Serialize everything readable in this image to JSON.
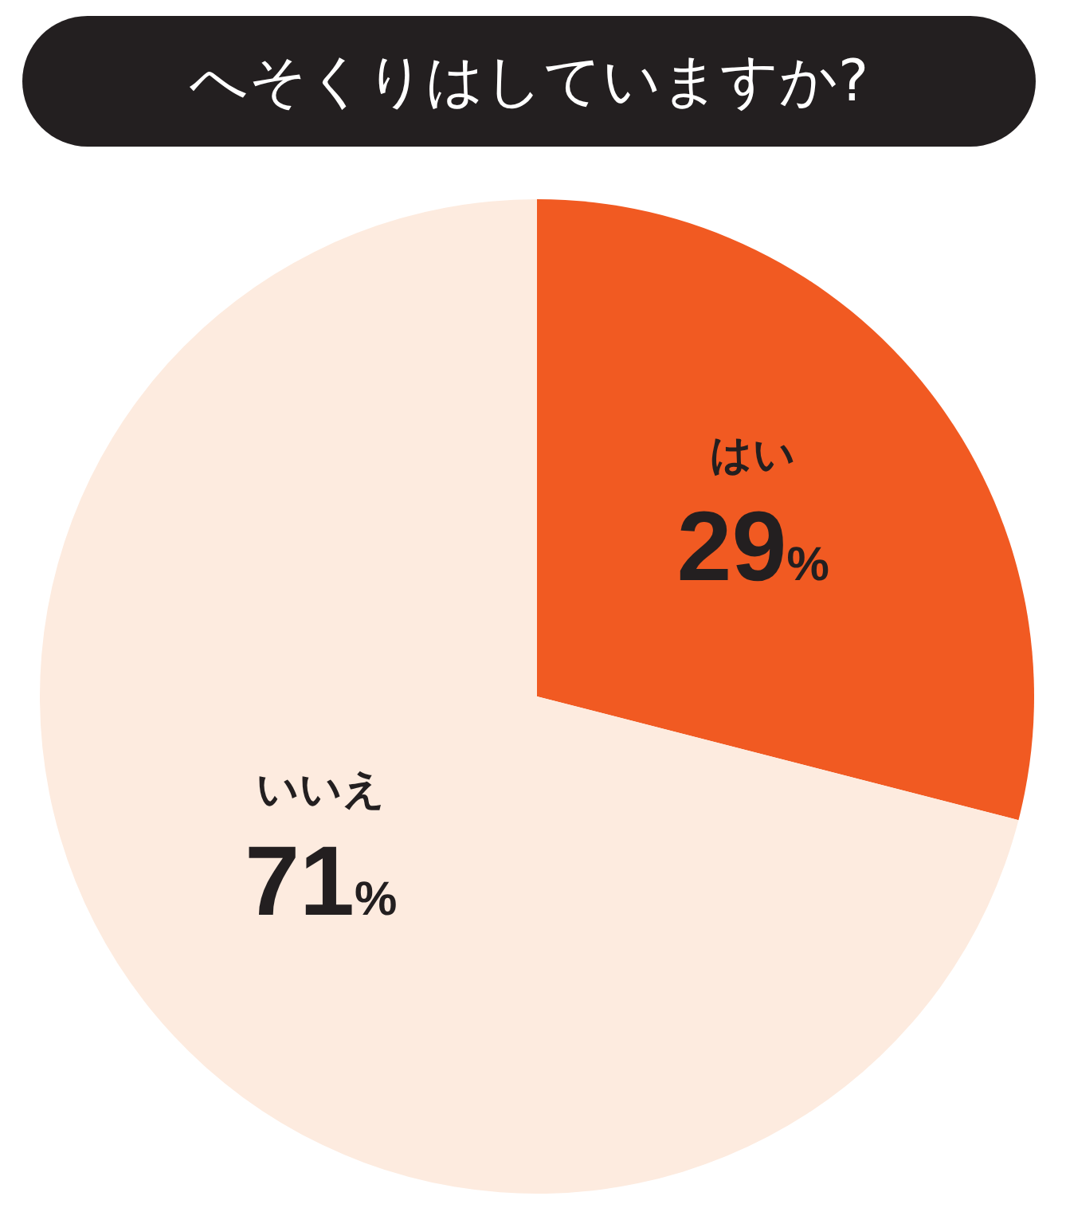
{
  "chart_data": {
    "type": "pie",
    "title": "へそくりはしていますか?",
    "categories": [
      "はい",
      "いいえ"
    ],
    "values": [
      29,
      71
    ],
    "colors": [
      "#f15a22",
      "#fdebdf"
    ],
    "value_labels": [
      "29%",
      "71%"
    ]
  }
}
